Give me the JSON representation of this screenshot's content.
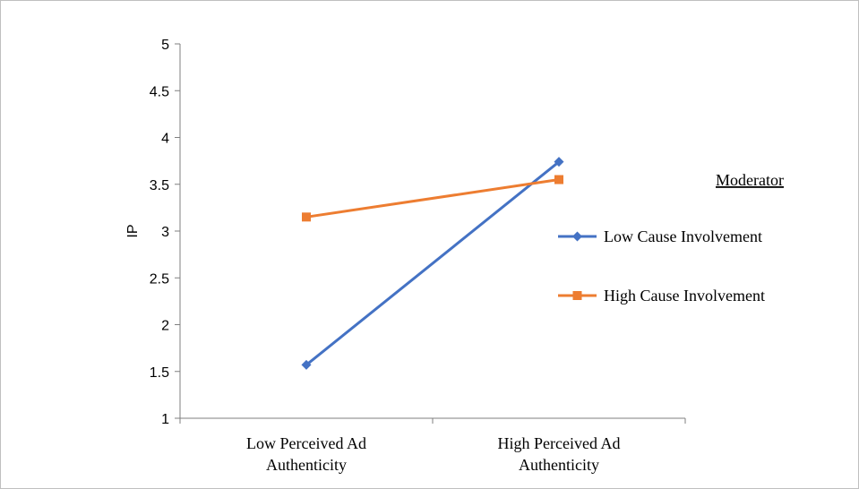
{
  "chart_data": {
    "type": "line",
    "categories": [
      "Low Perceived Ad Authenticity",
      "High Perceived Ad Authenticity"
    ],
    "category_lines": [
      [
        "Low Perceived Ad",
        "Authenticity"
      ],
      [
        "High Perceived Ad",
        "Authenticity"
      ]
    ],
    "series": [
      {
        "name": "Low Cause Involvement",
        "values": [
          1.57,
          3.74
        ],
        "color": "#4472C4",
        "marker": "diamond"
      },
      {
        "name": "High Cause Involvement",
        "values": [
          3.15,
          3.55
        ],
        "color": "#ED7D31",
        "marker": "square"
      }
    ],
    "ylabel": "IP",
    "xlabel": "",
    "ylim": [
      1,
      5
    ],
    "yticks": [
      "1",
      "1.5",
      "2",
      "2.5",
      "3",
      "3.5",
      "4",
      "4.5",
      "5"
    ],
    "grid": false,
    "legend": {
      "title": "Moderator",
      "position": "right"
    }
  }
}
